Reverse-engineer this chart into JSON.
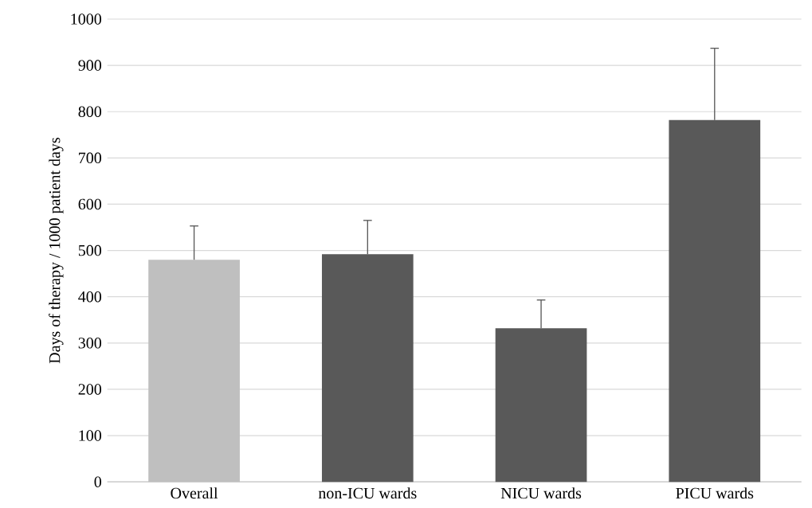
{
  "chart_data": {
    "type": "bar",
    "ylabel": "Days of therapy / 1000 patient days",
    "categories": [
      "Overall",
      "non-ICU wards",
      "NICU wards",
      "PICU wards"
    ],
    "values": [
      480,
      492,
      332,
      782
    ],
    "colors": [
      "#bfbfbf",
      "#595959",
      "#595959",
      "#595959"
    ],
    "errors": [
      [
        480,
        553
      ],
      [
        492,
        565
      ],
      [
        332,
        393
      ],
      [
        782,
        937
      ]
    ],
    "ylim": [
      0,
      1000
    ],
    "yticks": [
      0,
      100,
      200,
      300,
      400,
      500,
      600,
      700,
      800,
      900,
      1000
    ],
    "grid": "y"
  }
}
